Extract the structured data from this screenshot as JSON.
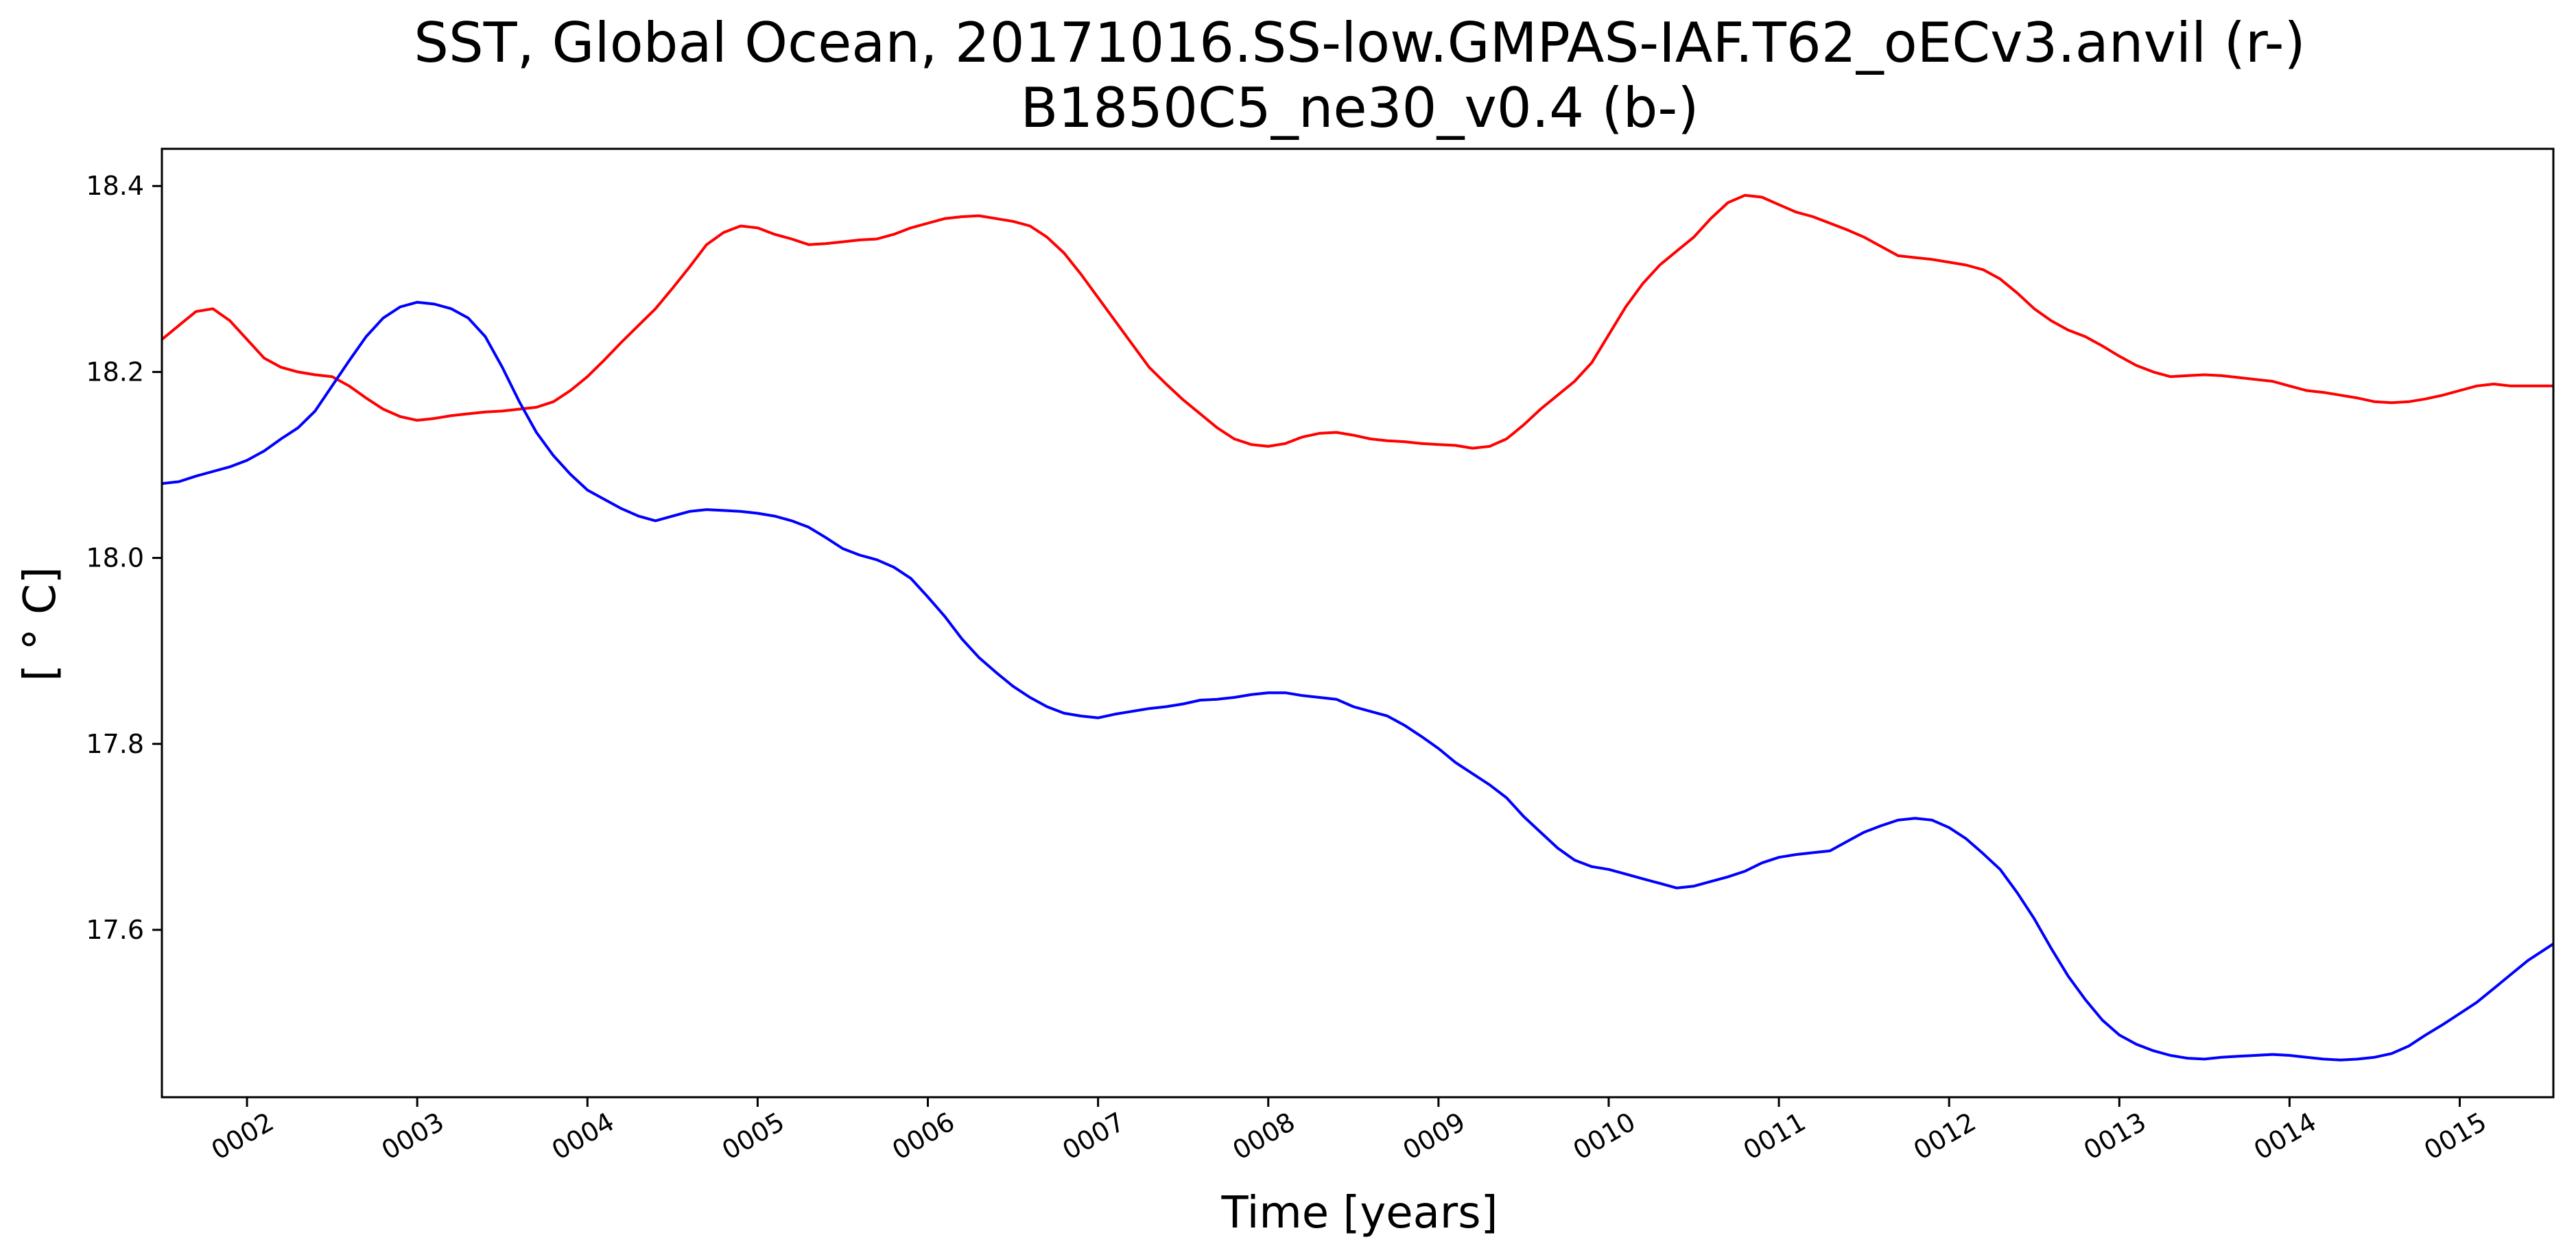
{
  "chart_data": {
    "type": "line",
    "title_line1": "SST, Global Ocean, 20171016.SS-low.GMPAS-IAF.T62_oECv3.anvil (r-)",
    "title_line2": "B1850C5_ne30_v0.4 (b-)",
    "xlabel": "Time [years]",
    "ylabel": "[ ° C]",
    "xlim": [
      1.5,
      15.55
    ],
    "ylim": [
      17.42,
      18.44
    ],
    "x_ticks": [
      {
        "value": 2,
        "label": "0002"
      },
      {
        "value": 3,
        "label": "0003"
      },
      {
        "value": 4,
        "label": "0004"
      },
      {
        "value": 5,
        "label": "0005"
      },
      {
        "value": 6,
        "label": "0006"
      },
      {
        "value": 7,
        "label": "0007"
      },
      {
        "value": 8,
        "label": "0008"
      },
      {
        "value": 9,
        "label": "0009"
      },
      {
        "value": 10,
        "label": "0010"
      },
      {
        "value": 11,
        "label": "0011"
      },
      {
        "value": 12,
        "label": "0012"
      },
      {
        "value": 13,
        "label": "0013"
      },
      {
        "value": 14,
        "label": "0014"
      },
      {
        "value": 15,
        "label": "0015"
      }
    ],
    "y_ticks": [
      {
        "value": 17.6,
        "label": "17.6"
      },
      {
        "value": 17.8,
        "label": "17.8"
      },
      {
        "value": 18.0,
        "label": "18.0"
      },
      {
        "value": 18.2,
        "label": "18.2"
      },
      {
        "value": 18.4,
        "label": "18.4"
      }
    ],
    "grid": false,
    "legend": "none",
    "series": [
      {
        "color": "#ff0000",
        "points": [
          [
            1.5,
            18.235
          ],
          [
            1.6,
            18.25
          ],
          [
            1.7,
            18.265
          ],
          [
            1.8,
            18.268
          ],
          [
            1.9,
            18.255
          ],
          [
            2.0,
            18.235
          ],
          [
            2.1,
            18.215
          ],
          [
            2.2,
            18.205
          ],
          [
            2.3,
            18.2
          ],
          [
            2.4,
            18.197
          ],
          [
            2.5,
            18.195
          ],
          [
            2.6,
            18.185
          ],
          [
            2.7,
            18.172
          ],
          [
            2.8,
            18.16
          ],
          [
            2.9,
            18.152
          ],
          [
            3.0,
            18.148
          ],
          [
            3.1,
            18.15
          ],
          [
            3.2,
            18.153
          ],
          [
            3.3,
            18.155
          ],
          [
            3.4,
            18.157
          ],
          [
            3.5,
            18.158
          ],
          [
            3.6,
            18.16
          ],
          [
            3.7,
            18.162
          ],
          [
            3.8,
            18.168
          ],
          [
            3.9,
            18.18
          ],
          [
            4.0,
            18.195
          ],
          [
            4.1,
            18.213
          ],
          [
            4.2,
            18.232
          ],
          [
            4.3,
            18.25
          ],
          [
            4.4,
            18.268
          ],
          [
            4.5,
            18.29
          ],
          [
            4.6,
            18.313
          ],
          [
            4.7,
            18.337
          ],
          [
            4.8,
            18.35
          ],
          [
            4.9,
            18.357
          ],
          [
            5.0,
            18.355
          ],
          [
            5.1,
            18.348
          ],
          [
            5.2,
            18.343
          ],
          [
            5.3,
            18.337
          ],
          [
            5.4,
            18.338
          ],
          [
            5.5,
            18.34
          ],
          [
            5.6,
            18.342
          ],
          [
            5.7,
            18.343
          ],
          [
            5.8,
            18.348
          ],
          [
            5.9,
            18.355
          ],
          [
            6.0,
            18.36
          ],
          [
            6.1,
            18.365
          ],
          [
            6.2,
            18.367
          ],
          [
            6.3,
            18.368
          ],
          [
            6.4,
            18.365
          ],
          [
            6.5,
            18.362
          ],
          [
            6.6,
            18.357
          ],
          [
            6.7,
            18.345
          ],
          [
            6.8,
            18.328
          ],
          [
            6.9,
            18.305
          ],
          [
            7.0,
            18.28
          ],
          [
            7.1,
            18.255
          ],
          [
            7.2,
            18.23
          ],
          [
            7.3,
            18.205
          ],
          [
            7.4,
            18.187
          ],
          [
            7.5,
            18.17
          ],
          [
            7.6,
            18.155
          ],
          [
            7.7,
            18.14
          ],
          [
            7.8,
            18.128
          ],
          [
            7.9,
            18.122
          ],
          [
            8.0,
            18.12
          ],
          [
            8.1,
            18.123
          ],
          [
            8.2,
            18.13
          ],
          [
            8.3,
            18.134
          ],
          [
            8.4,
            18.135
          ],
          [
            8.5,
            18.132
          ],
          [
            8.6,
            18.128
          ],
          [
            8.7,
            18.126
          ],
          [
            8.8,
            18.125
          ],
          [
            8.9,
            18.123
          ],
          [
            9.0,
            18.122
          ],
          [
            9.1,
            18.121
          ],
          [
            9.2,
            18.118
          ],
          [
            9.3,
            18.12
          ],
          [
            9.4,
            18.128
          ],
          [
            9.5,
            18.143
          ],
          [
            9.6,
            18.16
          ],
          [
            9.7,
            18.175
          ],
          [
            9.8,
            18.19
          ],
          [
            9.9,
            18.21
          ],
          [
            10.0,
            18.24
          ],
          [
            10.1,
            18.27
          ],
          [
            10.2,
            18.295
          ],
          [
            10.3,
            18.315
          ],
          [
            10.4,
            18.33
          ],
          [
            10.5,
            18.345
          ],
          [
            10.6,
            18.365
          ],
          [
            10.7,
            18.382
          ],
          [
            10.8,
            18.39
          ],
          [
            10.9,
            18.388
          ],
          [
            11.0,
            18.38
          ],
          [
            11.1,
            18.372
          ],
          [
            11.2,
            18.367
          ],
          [
            11.3,
            18.36
          ],
          [
            11.4,
            18.353
          ],
          [
            11.5,
            18.345
          ],
          [
            11.6,
            18.335
          ],
          [
            11.7,
            18.325
          ],
          [
            11.8,
            18.323
          ],
          [
            11.9,
            18.321
          ],
          [
            12.0,
            18.318
          ],
          [
            12.1,
            18.315
          ],
          [
            12.2,
            18.31
          ],
          [
            12.3,
            18.3
          ],
          [
            12.4,
            18.285
          ],
          [
            12.5,
            18.268
          ],
          [
            12.6,
            18.255
          ],
          [
            12.7,
            18.245
          ],
          [
            12.8,
            18.238
          ],
          [
            12.9,
            18.228
          ],
          [
            13.0,
            18.217
          ],
          [
            13.1,
            18.207
          ],
          [
            13.2,
            18.2
          ],
          [
            13.3,
            18.195
          ],
          [
            13.4,
            18.196
          ],
          [
            13.5,
            18.197
          ],
          [
            13.6,
            18.196
          ],
          [
            13.7,
            18.194
          ],
          [
            13.8,
            18.192
          ],
          [
            13.9,
            18.19
          ],
          [
            14.0,
            18.185
          ],
          [
            14.1,
            18.18
          ],
          [
            14.2,
            18.178
          ],
          [
            14.3,
            18.175
          ],
          [
            14.4,
            18.172
          ],
          [
            14.5,
            18.168
          ],
          [
            14.6,
            18.167
          ],
          [
            14.7,
            18.168
          ],
          [
            14.8,
            18.171
          ],
          [
            14.9,
            18.175
          ],
          [
            15.0,
            18.18
          ],
          [
            15.1,
            18.185
          ],
          [
            15.2,
            18.187
          ],
          [
            15.3,
            18.185
          ],
          [
            15.4,
            18.185
          ],
          [
            15.55,
            18.185
          ]
        ]
      },
      {
        "color": "#0000ff",
        "points": [
          [
            1.5,
            18.08
          ],
          [
            1.6,
            18.082
          ],
          [
            1.7,
            18.088
          ],
          [
            1.8,
            18.093
          ],
          [
            1.9,
            18.098
          ],
          [
            2.0,
            18.105
          ],
          [
            2.1,
            18.115
          ],
          [
            2.2,
            18.128
          ],
          [
            2.3,
            18.14
          ],
          [
            2.4,
            18.158
          ],
          [
            2.5,
            18.185
          ],
          [
            2.6,
            18.212
          ],
          [
            2.7,
            18.238
          ],
          [
            2.8,
            18.258
          ],
          [
            2.9,
            18.27
          ],
          [
            3.0,
            18.275
          ],
          [
            3.1,
            18.273
          ],
          [
            3.2,
            18.268
          ],
          [
            3.3,
            18.258
          ],
          [
            3.4,
            18.238
          ],
          [
            3.5,
            18.205
          ],
          [
            3.6,
            18.168
          ],
          [
            3.7,
            18.135
          ],
          [
            3.8,
            18.11
          ],
          [
            3.9,
            18.09
          ],
          [
            4.0,
            18.073
          ],
          [
            4.1,
            18.063
          ],
          [
            4.2,
            18.053
          ],
          [
            4.3,
            18.045
          ],
          [
            4.4,
            18.04
          ],
          [
            4.5,
            18.045
          ],
          [
            4.6,
            18.05
          ],
          [
            4.7,
            18.052
          ],
          [
            4.8,
            18.051
          ],
          [
            4.9,
            18.05
          ],
          [
            5.0,
            18.048
          ],
          [
            5.1,
            18.045
          ],
          [
            5.2,
            18.04
          ],
          [
            5.3,
            18.033
          ],
          [
            5.4,
            18.022
          ],
          [
            5.5,
            18.01
          ],
          [
            5.6,
            18.003
          ],
          [
            5.7,
            17.998
          ],
          [
            5.8,
            17.99
          ],
          [
            5.9,
            17.978
          ],
          [
            6.0,
            17.958
          ],
          [
            6.1,
            17.937
          ],
          [
            6.2,
            17.913
          ],
          [
            6.3,
            17.893
          ],
          [
            6.4,
            17.877
          ],
          [
            6.5,
            17.862
          ],
          [
            6.6,
            17.85
          ],
          [
            6.7,
            17.84
          ],
          [
            6.8,
            17.833
          ],
          [
            6.9,
            17.83
          ],
          [
            7.0,
            17.828
          ],
          [
            7.1,
            17.832
          ],
          [
            7.2,
            17.835
          ],
          [
            7.3,
            17.838
          ],
          [
            7.4,
            17.84
          ],
          [
            7.5,
            17.843
          ],
          [
            7.6,
            17.847
          ],
          [
            7.7,
            17.848
          ],
          [
            7.8,
            17.85
          ],
          [
            7.9,
            17.853
          ],
          [
            8.0,
            17.855
          ],
          [
            8.1,
            17.855
          ],
          [
            8.2,
            17.852
          ],
          [
            8.3,
            17.85
          ],
          [
            8.4,
            17.848
          ],
          [
            8.5,
            17.84
          ],
          [
            8.6,
            17.835
          ],
          [
            8.7,
            17.83
          ],
          [
            8.8,
            17.82
          ],
          [
            8.9,
            17.808
          ],
          [
            9.0,
            17.795
          ],
          [
            9.1,
            17.78
          ],
          [
            9.2,
            17.768
          ],
          [
            9.3,
            17.756
          ],
          [
            9.4,
            17.742
          ],
          [
            9.5,
            17.722
          ],
          [
            9.6,
            17.705
          ],
          [
            9.7,
            17.688
          ],
          [
            9.8,
            17.675
          ],
          [
            9.9,
            17.668
          ],
          [
            10.0,
            17.665
          ],
          [
            10.1,
            17.66
          ],
          [
            10.2,
            17.655
          ],
          [
            10.3,
            17.65
          ],
          [
            10.4,
            17.645
          ],
          [
            10.5,
            17.647
          ],
          [
            10.6,
            17.652
          ],
          [
            10.7,
            17.657
          ],
          [
            10.8,
            17.663
          ],
          [
            10.9,
            17.672
          ],
          [
            11.0,
            17.678
          ],
          [
            11.1,
            17.681
          ],
          [
            11.2,
            17.683
          ],
          [
            11.3,
            17.685
          ],
          [
            11.4,
            17.695
          ],
          [
            11.5,
            17.705
          ],
          [
            11.6,
            17.712
          ],
          [
            11.7,
            17.718
          ],
          [
            11.8,
            17.72
          ],
          [
            11.9,
            17.718
          ],
          [
            12.0,
            17.71
          ],
          [
            12.1,
            17.698
          ],
          [
            12.2,
            17.682
          ],
          [
            12.3,
            17.665
          ],
          [
            12.4,
            17.64
          ],
          [
            12.5,
            17.612
          ],
          [
            12.6,
            17.58
          ],
          [
            12.7,
            17.55
          ],
          [
            12.8,
            17.525
          ],
          [
            12.9,
            17.503
          ],
          [
            13.0,
            17.487
          ],
          [
            13.1,
            17.477
          ],
          [
            13.2,
            17.47
          ],
          [
            13.3,
            17.465
          ],
          [
            13.4,
            17.462
          ],
          [
            13.5,
            17.461
          ],
          [
            13.6,
            17.463
          ],
          [
            13.7,
            17.464
          ],
          [
            13.8,
            17.465
          ],
          [
            13.9,
            17.466
          ],
          [
            14.0,
            17.465
          ],
          [
            14.1,
            17.463
          ],
          [
            14.2,
            17.461
          ],
          [
            14.3,
            17.46
          ],
          [
            14.4,
            17.461
          ],
          [
            14.5,
            17.463
          ],
          [
            14.6,
            17.467
          ],
          [
            14.7,
            17.475
          ],
          [
            14.8,
            17.487
          ],
          [
            14.9,
            17.498
          ],
          [
            15.0,
            17.51
          ],
          [
            15.1,
            17.522
          ],
          [
            15.2,
            17.537
          ],
          [
            15.3,
            17.552
          ],
          [
            15.4,
            17.567
          ],
          [
            15.55,
            17.585
          ]
        ]
      }
    ]
  }
}
